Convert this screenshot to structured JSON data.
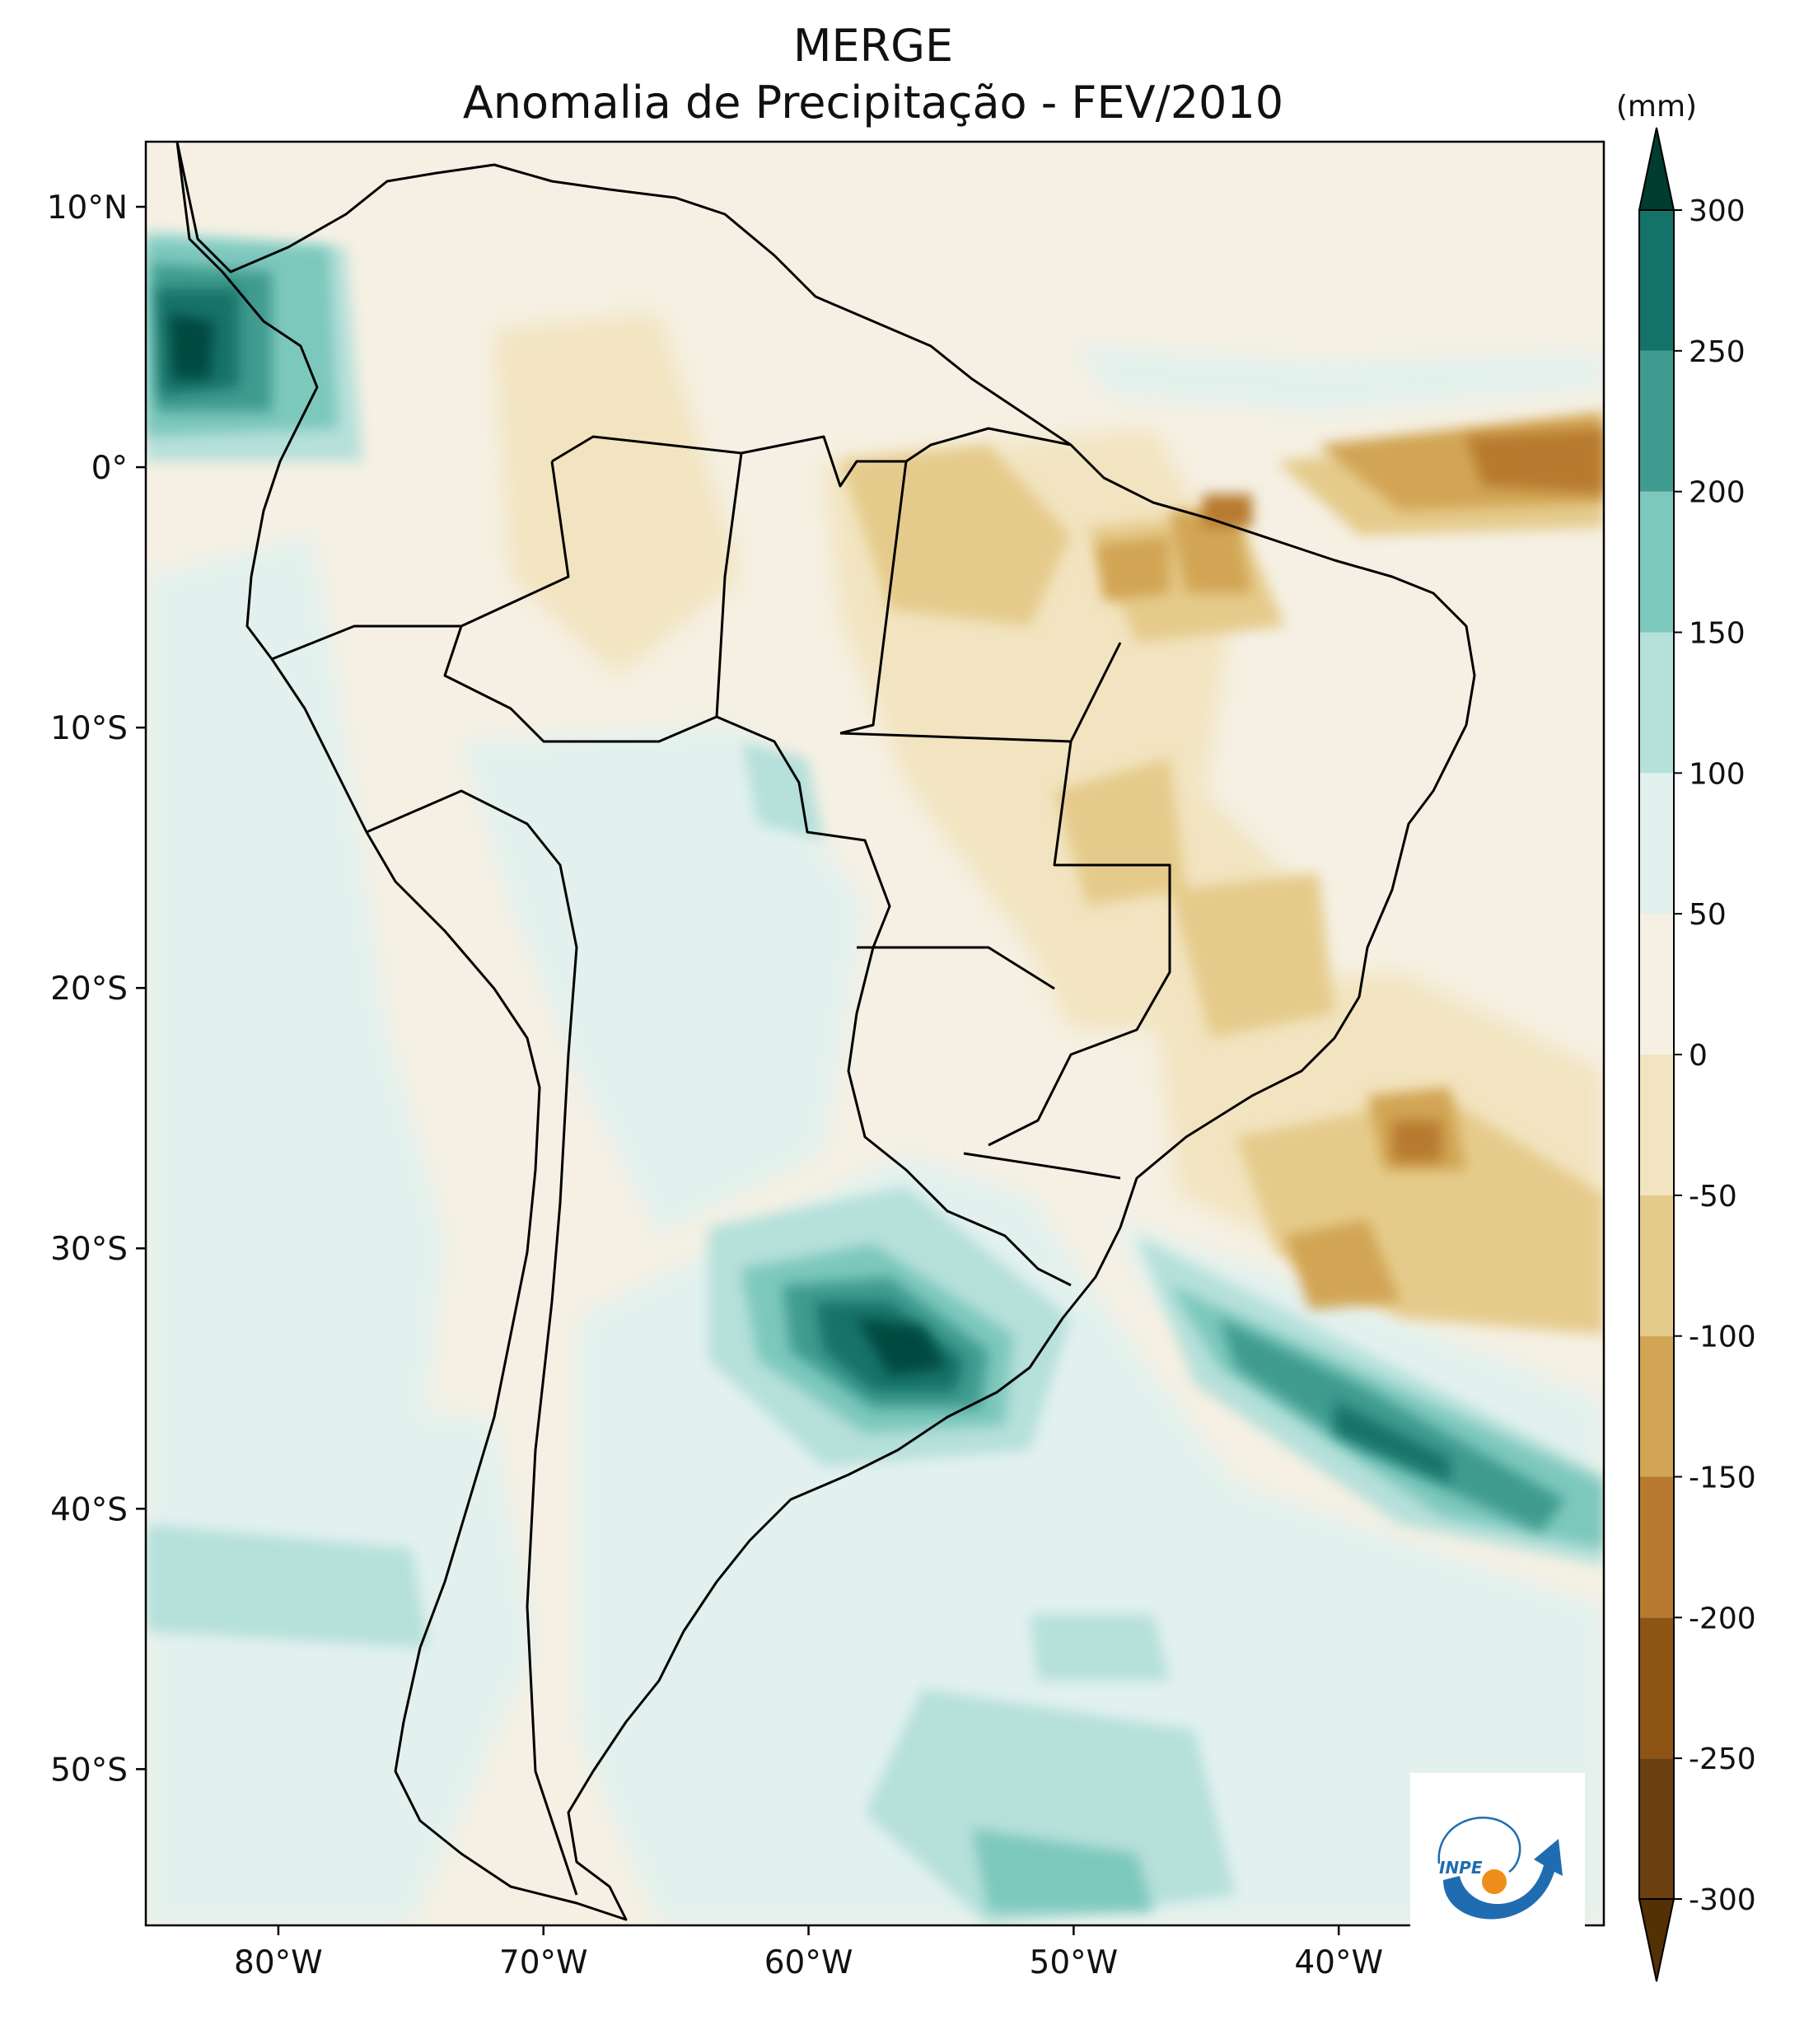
{
  "title": {
    "line1": "MERGE",
    "line2": "Anomalia de Precipitação - FEV/2010"
  },
  "colorbar": {
    "unit": "(mm)",
    "levels": [
      -300,
      -250,
      -200,
      -150,
      -100,
      -50,
      0,
      50,
      100,
      150,
      200,
      250,
      300
    ],
    "labels": [
      "-300",
      "-250",
      "-200",
      "-150",
      "-100",
      "-50",
      "0",
      "50",
      "100",
      "150",
      "200",
      "250",
      "300"
    ],
    "colors": [
      "#6b3f0f",
      "#8d5414",
      "#b77a2f",
      "#d2a554",
      "#e5cb8b",
      "#f2e4c0",
      "#f5f0e3",
      "#e2f1ee",
      "#b6e0da",
      "#7dc8bd",
      "#3f9b8f",
      "#137369",
      "#024a40"
    ],
    "extend_low_color": "#543005",
    "extend_high_color": "#003c30"
  },
  "axes": {
    "lat_labels": [
      "10°N",
      "0°",
      "10°S",
      "20°S",
      "30°S",
      "40°S",
      "50°S"
    ],
    "lat_values": [
      10,
      0,
      -10,
      -20,
      -30,
      -40,
      -50
    ],
    "lon_labels": [
      "80°W",
      "70°W",
      "60°W",
      "50°W",
      "40°W"
    ],
    "lon_values": [
      -80,
      -70,
      -60,
      -50,
      -40
    ],
    "lon_range": [
      -85,
      -30
    ],
    "lat_range": [
      -56,
      12.5
    ]
  },
  "map_colors": {
    "background": "#f5f0e3",
    "border": "#000000"
  },
  "logo": {
    "text": "INPE",
    "arc_color": "#1f6db0",
    "dot_color": "#f08c1a"
  }
}
